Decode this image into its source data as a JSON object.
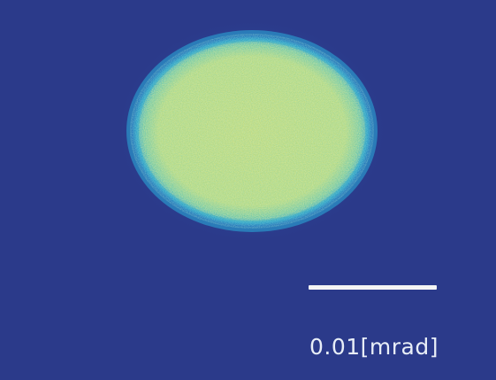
{
  "image": {
    "background_color": "#2b3a8a",
    "colormap": [
      "#2b3a8a",
      "#1f6fb8",
      "#2aa3c8",
      "#5cc3a8",
      "#a9d47c",
      "#d7dc58"
    ],
    "core_color": "#b7d77a"
  },
  "scale_bar": {
    "label": "0.01[mrad]",
    "color": "#f4f4f4"
  }
}
